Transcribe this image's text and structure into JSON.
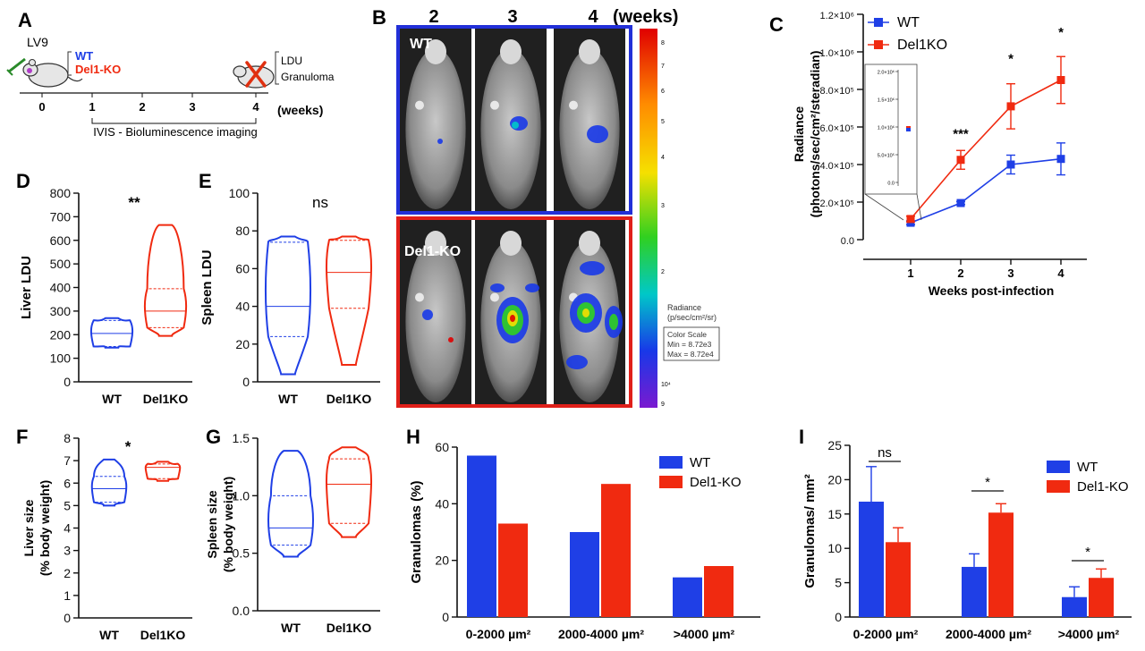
{
  "colors": {
    "wt": "#1f3fe6",
    "ko": "#f02a10",
    "black": "#111111",
    "gray": "#777777"
  },
  "panel_letters": [
    "A",
    "B",
    "C",
    "D",
    "E",
    "F",
    "G",
    "H",
    "I"
  ],
  "panelA": {
    "virus": "LV9",
    "groups": [
      "WT",
      "Del1-KO"
    ],
    "readouts": [
      "LDU",
      "Granuloma"
    ],
    "timeline_ticks": [
      "0",
      "1",
      "2",
      "3",
      "4"
    ],
    "unit": "(weeks)",
    "imaging": "IVIS - Bioluminescence imaging"
  },
  "panelB": {
    "weeks": [
      "2",
      "3",
      "4"
    ],
    "unit": "(weeks)",
    "row_labels": [
      "WT",
      "Del1-KO"
    ],
    "colorbar": {
      "title_line1": "Radiance",
      "title_line2": "(p/sec/cm²/sr)",
      "scale_line1": "Color Scale",
      "scale_line2": "Min = 8.72e3",
      "scale_line3": "Max = 8.72e4",
      "tick_labels": [
        "8",
        "7",
        "6",
        "5",
        "4",
        "3",
        "2",
        "10⁴",
        "9"
      ]
    }
  },
  "chart_data": [
    {
      "id": "C",
      "type": "line",
      "x": [
        1,
        2,
        3,
        4
      ],
      "series": [
        {
          "name": "WT",
          "values": [
            90000,
            195000,
            400000,
            430000
          ],
          "errors": [
            10000,
            8000,
            50000,
            85000
          ]
        },
        {
          "name": "Del1KO",
          "values": [
            110000,
            425000,
            710000,
            850000
          ],
          "errors": [
            15000,
            50000,
            120000,
            125000
          ]
        }
      ],
      "ylim": [
        0,
        1200000
      ],
      "yticks": [
        "0.0",
        "2.0×10⁵",
        "4.0×10⁵",
        "6.0×10⁵",
        "8.0×10⁵",
        "1.0×10⁶",
        "1.2×10⁶"
      ],
      "xticks": [
        "1",
        "2",
        "3",
        "4"
      ],
      "xlabel": "Weeks post-infection",
      "ylabel_line1": "Radiance",
      "ylabel_line2": "(photons/sec/cm²/steradian)",
      "significance": [
        "***",
        "*",
        "*"
      ],
      "inset": {
        "yticks": [
          "2.0×10⁶",
          "1.5×10⁶",
          "1.0×10⁶",
          "5.0×10⁵",
          "0.0"
        ]
      }
    },
    {
      "id": "D",
      "type": "violin",
      "categories": [
        "WT",
        "Del1KO"
      ],
      "ylim": [
        0,
        800
      ],
      "yticks": [
        "0",
        "100",
        "200",
        "300",
        "400",
        "500",
        "600",
        "700",
        "800"
      ],
      "ylabel": "Liver LDU",
      "significance": "**",
      "groups": [
        {
          "name": "WT",
          "min": 145,
          "q1": 150,
          "median": 205,
          "q3": 260,
          "max": 270
        },
        {
          "name": "Del1KO",
          "min": 195,
          "q1": 230,
          "median": 300,
          "q3": 395,
          "max": 665
        }
      ]
    },
    {
      "id": "E",
      "type": "violin",
      "categories": [
        "WT",
        "Del1KO"
      ],
      "ylim": [
        0,
        100
      ],
      "yticks": [
        "0",
        "20",
        "40",
        "60",
        "80",
        "100"
      ],
      "ylabel": "Spleen LDU",
      "significance": "ns",
      "groups": [
        {
          "name": "WT",
          "min": 4,
          "q1": 24,
          "median": 40,
          "q3": 74,
          "max": 77
        },
        {
          "name": "Del1KO",
          "min": 9,
          "q1": 39,
          "median": 58,
          "q3": 75,
          "max": 77
        }
      ]
    },
    {
      "id": "F",
      "type": "violin",
      "categories": [
        "WT",
        "Del1KO"
      ],
      "ylim": [
        0,
        8
      ],
      "yticks": [
        "0",
        "1",
        "2",
        "3",
        "4",
        "5",
        "6",
        "7",
        "8"
      ],
      "ylabel_line1": "Liver size",
      "ylabel_line2": "(% body weight)",
      "significance": "*",
      "groups": [
        {
          "name": "WT",
          "min": 5.0,
          "q1": 5.15,
          "median": 5.75,
          "q3": 6.3,
          "max": 7.05
        },
        {
          "name": "Del1KO",
          "min": 6.1,
          "q1": 6.2,
          "median": 6.7,
          "q3": 6.85,
          "max": 6.95
        }
      ]
    },
    {
      "id": "G",
      "type": "violin",
      "categories": [
        "WT",
        "Del1KO"
      ],
      "ylim": [
        0,
        1.5
      ],
      "yticks": [
        "0.0",
        "0.5",
        "1.0",
        "1.5"
      ],
      "ylabel_line1": "Spleen size",
      "ylabel_line2": "(% body weight)",
      "groups": [
        {
          "name": "WT",
          "min": 0.47,
          "q1": 0.57,
          "median": 0.72,
          "q3": 1.0,
          "max": 1.39
        },
        {
          "name": "Del1KO",
          "min": 0.64,
          "q1": 0.76,
          "median": 1.1,
          "q3": 1.32,
          "max": 1.42
        }
      ]
    },
    {
      "id": "H",
      "type": "bar",
      "categories": [
        "0-2000 µm²",
        "2000-4000 µm²",
        ">4000 µm²"
      ],
      "series": [
        {
          "name": "WT",
          "values": [
            57,
            30,
            14
          ]
        },
        {
          "name": "Del1-KO",
          "values": [
            33,
            47,
            18
          ]
        }
      ],
      "ylim": [
        0,
        60
      ],
      "yticks": [
        "0",
        "20",
        "40",
        "60"
      ],
      "ylabel": "Granulomas (%)"
    },
    {
      "id": "I",
      "type": "bar",
      "categories": [
        "0-2000 µm²",
        "2000-4000 µm²",
        ">4000 µm²"
      ],
      "series": [
        {
          "name": "WT",
          "values": [
            16.8,
            7.3,
            2.9
          ],
          "errors": [
            5.1,
            1.9,
            1.5
          ]
        },
        {
          "name": "Del1-KO",
          "values": [
            10.9,
            15.2,
            5.7
          ],
          "errors": [
            2.1,
            1.3,
            1.3
          ]
        }
      ],
      "ylim": [
        0,
        25
      ],
      "yticks": [
        "0",
        "5",
        "10",
        "15",
        "20",
        "25"
      ],
      "ylabel": "Granulomas/ mm²",
      "significance": [
        "ns",
        "*",
        "*"
      ]
    }
  ]
}
